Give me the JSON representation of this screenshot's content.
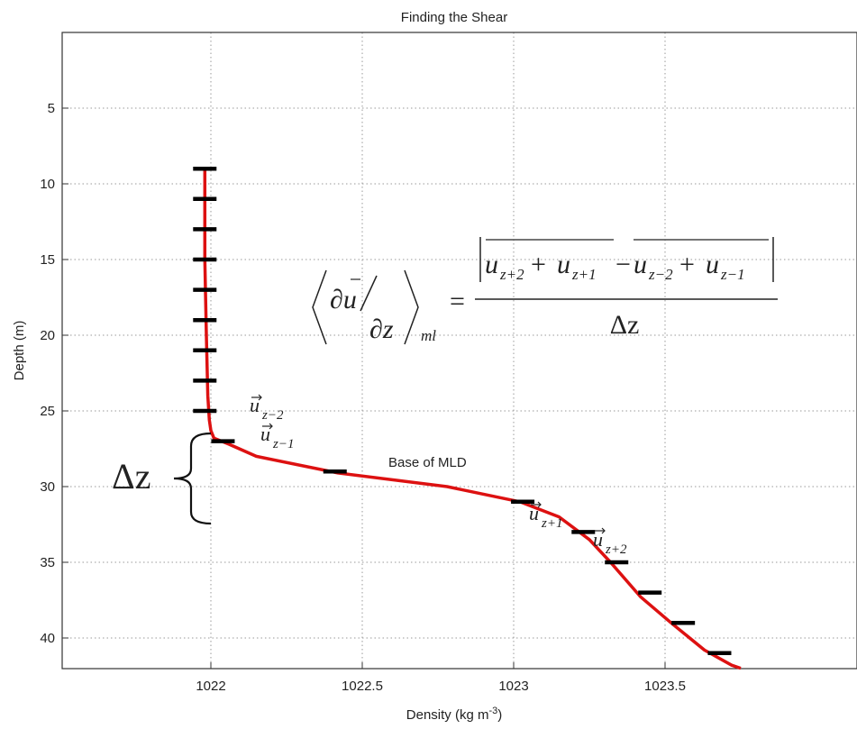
{
  "chart_data": {
    "type": "line",
    "title": "Finding the Shear",
    "xlabel": "Density (kg m",
    "xlabel_sup": "-3",
    "xlabel_close": ")",
    "ylabel": "Depth (m)",
    "xlim": [
      1021.6,
      1023.75
    ],
    "ylim": [
      42,
      0
    ],
    "y_reversed": true,
    "grid": true,
    "x_ticks": [
      {
        "value": 1022,
        "label": "1022"
      },
      {
        "value": 1022.5,
        "label": "1022.5"
      },
      {
        "value": 1023,
        "label": "1023"
      },
      {
        "value": 1023.5,
        "label": "1023.5"
      }
    ],
    "y_ticks": [
      {
        "value": 5,
        "label": "5"
      },
      {
        "value": 10,
        "label": "10"
      },
      {
        "value": 15,
        "label": "15"
      },
      {
        "value": 20,
        "label": "20"
      },
      {
        "value": 25,
        "label": "25"
      },
      {
        "value": 30,
        "label": "30"
      },
      {
        "value": 35,
        "label": "35"
      },
      {
        "value": 40,
        "label": "40"
      }
    ],
    "series": [
      {
        "color": "#dd1111",
        "x": [
          1021.98,
          1021.98,
          1021.985,
          1021.99,
          1021.995,
          1022.0,
          1022.01,
          1022.06,
          1022.15,
          1022.42,
          1022.78,
          1023.02,
          1023.15,
          1023.25,
          1023.32,
          1023.42,
          1023.52,
          1023.63,
          1023.72,
          1023.75
        ],
        "y": [
          9,
          15,
          20,
          24,
          25.6,
          26.3,
          26.8,
          27.2,
          28,
          29.1,
          30,
          31,
          32,
          33.5,
          35,
          37.3,
          39,
          40.8,
          41.8,
          42
        ]
      }
    ],
    "markers": {
      "color": "#000000",
      "points": [
        {
          "x": 1021.98,
          "y": 9
        },
        {
          "x": 1021.98,
          "y": 11
        },
        {
          "x": 1021.98,
          "y": 13
        },
        {
          "x": 1021.98,
          "y": 15
        },
        {
          "x": 1021.98,
          "y": 17
        },
        {
          "x": 1021.98,
          "y": 19
        },
        {
          "x": 1021.98,
          "y": 21
        },
        {
          "x": 1021.98,
          "y": 23
        },
        {
          "x": 1021.98,
          "y": 25
        },
        {
          "x": 1022.04,
          "y": 27
        },
        {
          "x": 1022.41,
          "y": 29
        },
        {
          "x": 1023.03,
          "y": 31
        },
        {
          "x": 1023.23,
          "y": 33
        },
        {
          "x": 1023.34,
          "y": 35
        },
        {
          "x": 1023.45,
          "y": 37
        },
        {
          "x": 1023.56,
          "y": 39
        },
        {
          "x": 1023.68,
          "y": 41
        }
      ]
    },
    "annotations": {
      "base_of_mld": "Base of MLD",
      "u_z_minus2": "u",
      "u_z_minus2_sub": "z−2",
      "u_z_minus1": "u",
      "u_z_minus1_sub": "z−1",
      "u_z_plus1": "u",
      "u_z_plus1_sub": "z+1",
      "u_z_plus2": "u",
      "u_z_plus2_sub": "z+2",
      "delta_z": "Δz",
      "formula": {
        "lhs_numer": "∂u",
        "lhs_denom": "∂z",
        "lhs_sub": "ml",
        "equals": "=",
        "t1": "u",
        "t1_sub": "z+2",
        "plus1": "+",
        "t2": "u",
        "t2_sub": "z+1",
        "minus": "−",
        "t3": "u",
        "t3_sub": "z−2",
        "plus2": "+",
        "t4": "u",
        "t4_sub": "z−1",
        "denominator": "Δz"
      }
    }
  }
}
